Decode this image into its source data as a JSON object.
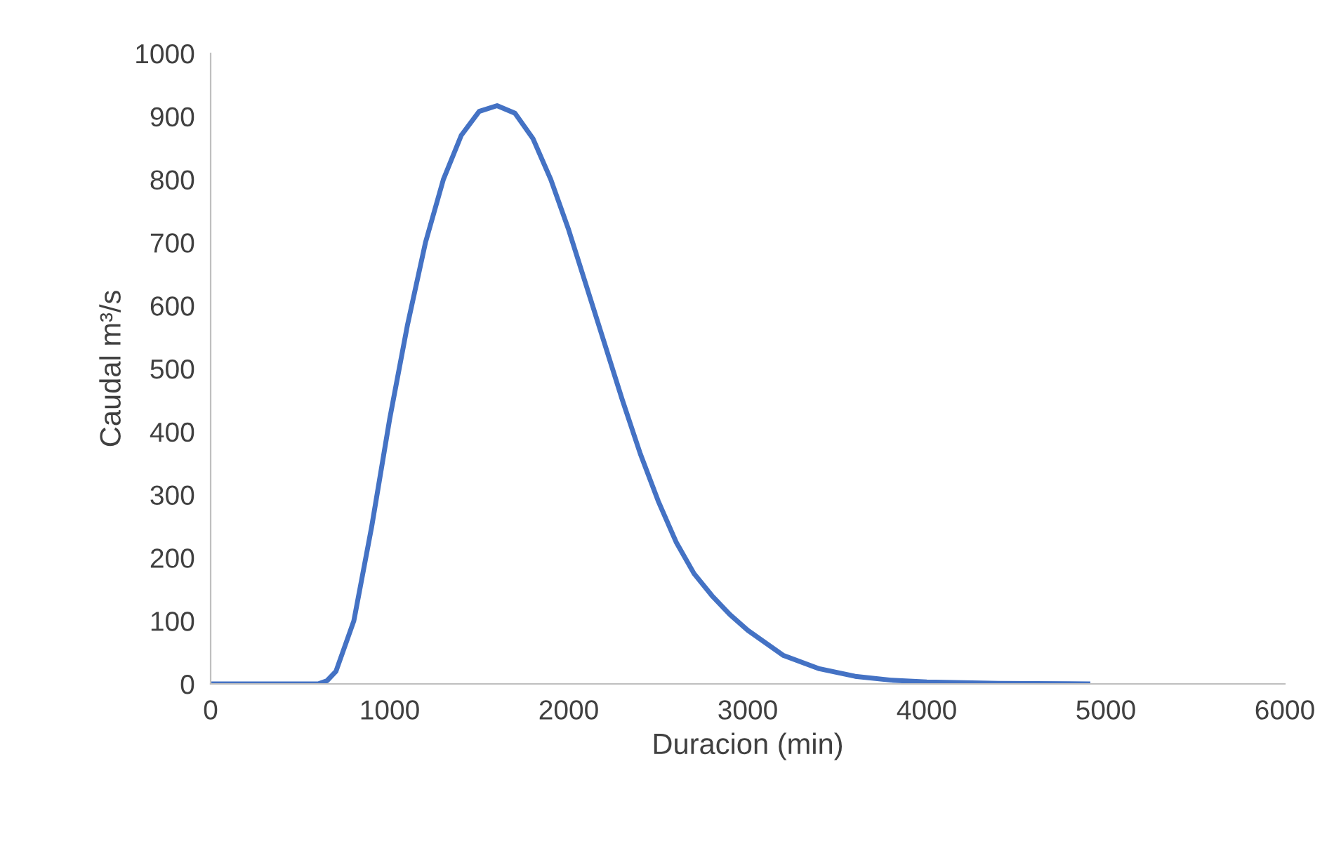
{
  "chart_data": {
    "type": "line",
    "xlabel": "Duracion (min)",
    "ylabel": "Caudal m³/s",
    "xlim": [
      0,
      6000
    ],
    "xticks": [
      0,
      1000,
      2000,
      3000,
      4000,
      5000,
      6000
    ],
    "ylim": [
      0,
      1000
    ],
    "yticks": [
      0,
      100,
      200,
      300,
      400,
      500,
      600,
      700,
      800,
      900,
      1000
    ],
    "grid": false,
    "legend": false,
    "marker": "none",
    "line_style": "solid",
    "series": [
      {
        "color": "#4472c4",
        "x": [
          0,
          500,
          600,
          650,
          700,
          800,
          900,
          1000,
          1100,
          1200,
          1300,
          1400,
          1500,
          1600,
          1700,
          1800,
          1900,
          2000,
          2100,
          2200,
          2300,
          2400,
          2500,
          2600,
          2700,
          2800,
          2900,
          3000,
          3200,
          3400,
          3600,
          3800,
          4000,
          4400,
          4900
        ],
        "values": [
          0,
          0,
          0,
          5,
          20,
          100,
          250,
          420,
          570,
          700,
          800,
          870,
          908,
          917,
          905,
          865,
          800,
          720,
          630,
          540,
          450,
          365,
          290,
          225,
          175,
          140,
          110,
          85,
          45,
          24,
          12,
          6,
          3,
          1,
          0
        ]
      }
    ]
  }
}
